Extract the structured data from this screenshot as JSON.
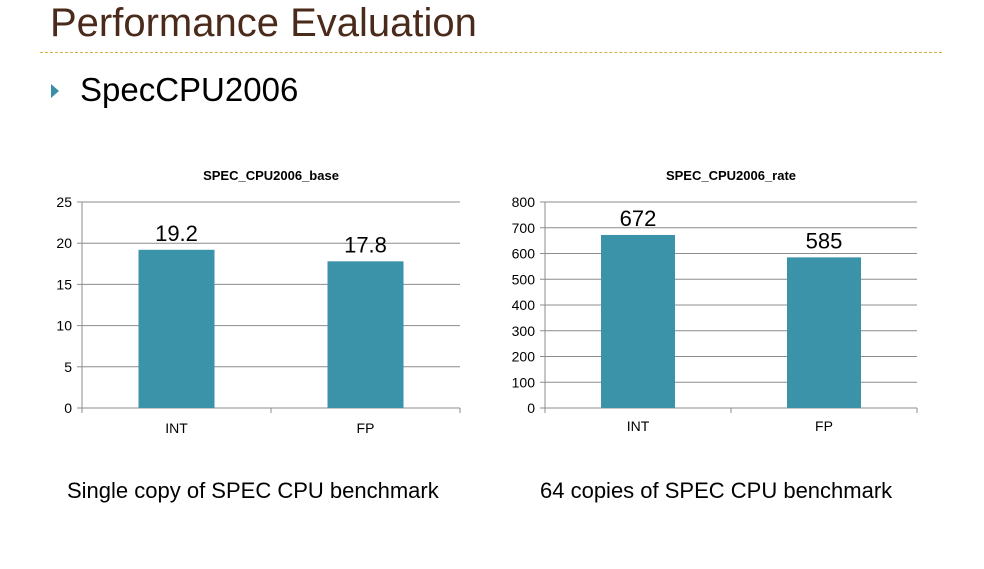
{
  "slide": {
    "title": "Performance Evaluation",
    "bullet": "SpecCPU2006",
    "bullet_icon": "triangle-bullet-icon",
    "accent_color": "#3a8fa8",
    "title_color": "#4a2a1a",
    "rule_color": "#d4b24a"
  },
  "captions": {
    "left": "Single copy of SPEC CPU benchmark",
    "right": "64 copies of SPEC CPU benchmark"
  },
  "chart_data": [
    {
      "type": "bar",
      "title": "SPEC_CPU2006_base",
      "categories": [
        "INT",
        "FP"
      ],
      "values": [
        19.2,
        17.8
      ],
      "value_labels": [
        "19.2",
        "17.8"
      ],
      "ylim": [
        0,
        25
      ],
      "ytick_labels": [
        "0",
        "5",
        "10",
        "15",
        "20",
        "25"
      ],
      "grid": true,
      "bar_color": "#3a93a8"
    },
    {
      "type": "bar",
      "title": "SPEC_CPU2006_rate",
      "categories": [
        "INT",
        "FP"
      ],
      "values": [
        672,
        585
      ],
      "value_labels": [
        "672",
        "585"
      ],
      "ylim": [
        0,
        800
      ],
      "ytick_labels": [
        "0",
        "100",
        "200",
        "300",
        "400",
        "500",
        "600",
        "700",
        "800"
      ],
      "grid": true,
      "bar_color": "#3a93a8"
    }
  ]
}
